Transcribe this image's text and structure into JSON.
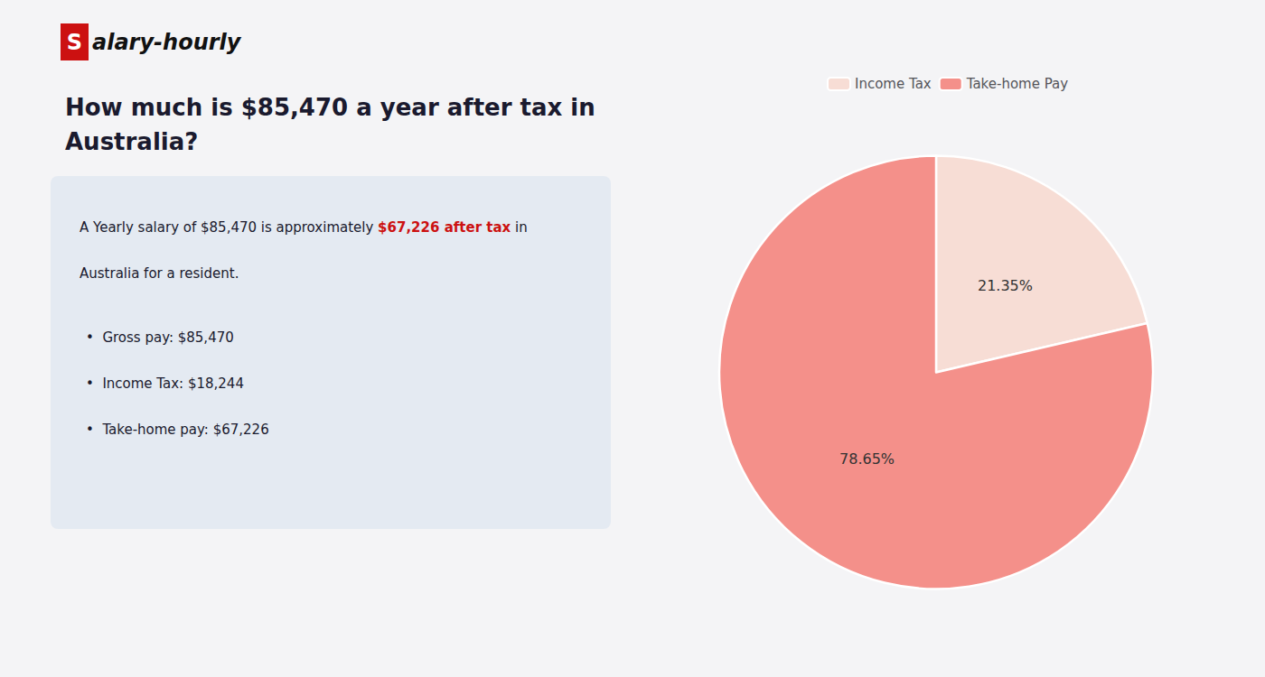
{
  "chart_data": {
    "type": "pie",
    "title": "How much is $85,470 a year after tax in\nAustralia?",
    "categories": [
      "Income Tax",
      "Take-home Pay"
    ],
    "values": [
      21.35,
      78.65
    ],
    "value_labels": [
      "21.35%",
      "78.65%"
    ],
    "colors": [
      "#f7ddd5",
      "#f4908a"
    ],
    "data_labels": true,
    "legend": "top",
    "annotations": [
      {
        "text": "S",
        "color": "#cc1111"
      },
      {
        "text": "alary-hourly"
      },
      {
        "text": "A Yearly salary of $85,470 is approximately "
      },
      {
        "text": "$67,226 after tax",
        "color": "#cc1111"
      },
      {
        "text": " in"
      },
      {
        "text": "Australia for a resident."
      },
      {
        "text": "•  Gross pay: $85,470"
      },
      {
        "text": "•  Income Tax: $18,244"
      },
      {
        "text": "•  Take-home pay: $67,226"
      }
    ]
  }
}
